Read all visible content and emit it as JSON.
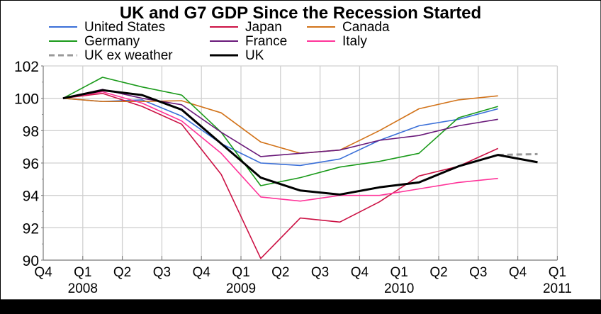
{
  "chart_data": {
    "type": "line",
    "title": "UK and G7 GDP Since the Recession Started",
    "xlabel": "",
    "ylabel": "",
    "ylim": [
      90,
      102
    ],
    "yticks": [
      "90",
      "92",
      "94",
      "96",
      "98",
      "100",
      "102"
    ],
    "grid": true,
    "legend_position": "top",
    "x_quarter_ticks": [
      "Q4",
      "Q1",
      "Q2",
      "Q3",
      "Q4",
      "Q1",
      "Q2",
      "Q3",
      "Q4",
      "Q1",
      "Q2",
      "Q3",
      "Q4",
      "Q1"
    ],
    "x_year_labels": [
      {
        "label": "2008",
        "tick_index": 1
      },
      {
        "label": "2009",
        "tick_index": 5
      },
      {
        "label": "2010",
        "tick_index": 9
      },
      {
        "label": "2011",
        "tick_index": 13
      }
    ],
    "x": [
      "2007 Q4",
      "2008 Q1",
      "2008 Q2",
      "2008 Q3",
      "2008 Q4",
      "2009 Q1",
      "2009 Q2",
      "2009 Q3",
      "2009 Q4",
      "2010 Q1",
      "2010 Q2",
      "2010 Q3",
      "2010 Q4"
    ],
    "series": [
      {
        "name": "United States",
        "color": "#3a6fd8",
        "dash": false,
        "width": "thin",
        "values": [
          100,
          99.8,
          99.9,
          98.9,
          97.2,
          96.0,
          95.85,
          96.25,
          97.4,
          98.3,
          98.7,
          99.35,
          null
        ]
      },
      {
        "name": "Japan",
        "color": "#cc1144",
        "dash": false,
        "width": "thin",
        "values": [
          100,
          100.3,
          99.5,
          98.4,
          95.3,
          90.1,
          92.6,
          92.35,
          93.6,
          95.2,
          95.8,
          96.9,
          null
        ]
      },
      {
        "name": "Canada",
        "color": "#d2731a",
        "dash": false,
        "width": "thin",
        "values": [
          100,
          99.8,
          99.8,
          99.85,
          99.1,
          97.3,
          96.6,
          96.8,
          98.0,
          99.35,
          99.9,
          100.15,
          null
        ]
      },
      {
        "name": "Germany",
        "color": "#1a9a1a",
        "dash": false,
        "width": "thin",
        "values": [
          100,
          101.3,
          100.7,
          100.2,
          97.9,
          94.6,
          95.1,
          95.75,
          96.1,
          96.6,
          98.8,
          99.5,
          null
        ]
      },
      {
        "name": "France",
        "color": "#6a1a7a",
        "dash": false,
        "width": "thin",
        "values": [
          100,
          100.55,
          100.0,
          99.6,
          97.9,
          96.4,
          96.6,
          96.8,
          97.4,
          97.7,
          98.3,
          98.7,
          null
        ]
      },
      {
        "name": "Italy",
        "color": "#ff3399",
        "dash": false,
        "width": "thin",
        "values": [
          100,
          100.4,
          99.7,
          98.6,
          96.6,
          93.9,
          93.65,
          94.0,
          94.0,
          94.4,
          94.8,
          95.05,
          null
        ]
      },
      {
        "name": "UK ex weather",
        "color": "#999999",
        "dash": true,
        "width": "thick",
        "values": [
          null,
          null,
          null,
          null,
          null,
          null,
          null,
          null,
          null,
          null,
          null,
          96.5,
          96.55
        ]
      },
      {
        "name": "UK",
        "color": "#000000",
        "dash": false,
        "width": "thick",
        "values": [
          100,
          100.5,
          100.2,
          99.3,
          97.2,
          95.1,
          94.3,
          94.05,
          94.5,
          94.8,
          95.8,
          96.5,
          96.05
        ]
      }
    ],
    "legend_order": [
      "United States",
      "Japan",
      "Canada",
      "Germany",
      "France",
      "Italy",
      "UK ex weather",
      "UK"
    ]
  }
}
